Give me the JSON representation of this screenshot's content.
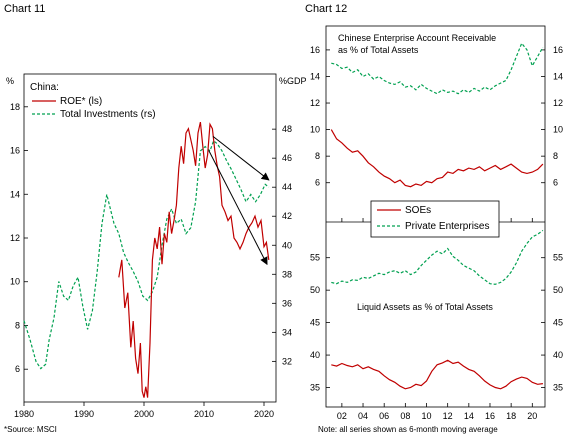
{
  "chart_data": [
    {
      "title": "Chart 11",
      "type": "line",
      "legend_title": "China:",
      "legend_position": "top-left",
      "left_axis_unit": "%",
      "right_axis_unit": "%GDP",
      "source": "*Source: MSCI",
      "xlim": [
        1980,
        2022
      ],
      "x_ticks": [
        "1980",
        "1990",
        "2000",
        "2010",
        "2020"
      ],
      "ylim_left": [
        4.5,
        19.5
      ],
      "y_ticks_left": [
        "6",
        "8",
        "10",
        "12",
        "14",
        "16",
        "18"
      ],
      "ylim_right": [
        29.2,
        51.8
      ],
      "y_ticks_right": [
        "32",
        "34",
        "36",
        "38",
        "40",
        "42",
        "44",
        "46",
        "48"
      ],
      "grid": false,
      "series": [
        {
          "name": "ROE* (ls)",
          "axis": "left",
          "color": "#c00000",
          "style": "solid",
          "x": [
            1995.8,
            1996.3,
            1996.8,
            1997.3,
            1997.8,
            1998.2,
            1998.6,
            1999.0,
            1999.4,
            1999.7,
            2000.0,
            2000.3,
            2000.6,
            2001.0,
            2001.4,
            2001.8,
            2002.2,
            2002.6,
            2003.0,
            2003.4,
            2003.8,
            2004.2,
            2004.6,
            2005.0,
            2005.4,
            2005.8,
            2006.2,
            2006.6,
            2007.0,
            2007.4,
            2007.8,
            2008.2,
            2008.6,
            2009.0,
            2009.4,
            2009.8,
            2010.2,
            2010.6,
            2011.0,
            2011.4,
            2011.8,
            2012.2,
            2012.6,
            2013.0,
            2013.5,
            2014.0,
            2014.5,
            2015.0,
            2015.5,
            2016.0,
            2016.5,
            2017.0,
            2017.5,
            2018.0,
            2018.5,
            2019.0,
            2019.5,
            2020.0,
            2020.4,
            2020.8
          ],
          "values": [
            10.2,
            11.0,
            8.8,
            9.5,
            7.0,
            8.2,
            6.5,
            5.8,
            7.2,
            5.0,
            4.7,
            5.2,
            4.7,
            7.2,
            11.0,
            12.0,
            11.5,
            12.5,
            10.8,
            12.2,
            11.8,
            13.2,
            12.2,
            12.8,
            13.5,
            15.2,
            16.2,
            15.4,
            16.8,
            17.0,
            16.5,
            16.0,
            15.3,
            16.8,
            17.3,
            16.2,
            15.2,
            15.8,
            17.2,
            17.0,
            16.0,
            15.3,
            14.8,
            13.5,
            13.2,
            12.8,
            13.0,
            12.0,
            11.8,
            11.5,
            11.8,
            12.2,
            12.5,
            12.7,
            13.0,
            12.5,
            12.8,
            11.6,
            11.8,
            11.0
          ]
        },
        {
          "name": "Total Investments (rs)",
          "axis": "right",
          "color": "#00a050",
          "style": "dashed",
          "x": [
            1980,
            1981,
            1982,
            1982.8,
            1983.6,
            1984.2,
            1985,
            1985.8,
            1986.6,
            1987.4,
            1988.2,
            1989,
            1989.8,
            1990.6,
            1991.4,
            1992.2,
            1993,
            1993.8,
            1994.4,
            1995,
            1995.8,
            1996.6,
            1997.4,
            1998.2,
            1999,
            1999.8,
            2000.6,
            2001.4,
            2002.2,
            2003,
            2003.8,
            2004.6,
            2005.4,
            2006.2,
            2007,
            2007.8,
            2008.6,
            2009.4,
            2010.2,
            2011,
            2011.6,
            2012.2,
            2013,
            2013.8,
            2014.6,
            2015.4,
            2016.2,
            2017,
            2017.8,
            2018.6,
            2019.4,
            2020.2,
            2020.8
          ],
          "values": [
            34.8,
            33.5,
            32.0,
            31.5,
            31.8,
            33.5,
            35.0,
            37.5,
            36.5,
            36.2,
            37.2,
            37.8,
            35.8,
            34.2,
            35.5,
            38.2,
            41.5,
            43.5,
            42.5,
            41.5,
            40.8,
            39.5,
            38.8,
            38.2,
            37.5,
            36.5,
            36.2,
            36.8,
            37.8,
            40.0,
            41.8,
            42.5,
            41.5,
            41.8,
            40.8,
            41.2,
            43.0,
            46.5,
            46.8,
            46.5,
            47.2,
            47.0,
            46.5,
            45.8,
            45.2,
            44.5,
            43.8,
            43.0,
            43.5,
            43.0,
            43.5,
            44.2,
            44.0
          ]
        }
      ],
      "annotations": [
        {
          "type": "arrow",
          "from": [
            2011.5,
            47.5
          ],
          "to": [
            2020.8,
            44.5
          ]
        },
        {
          "type": "arrow",
          "from": [
            2010.8,
            16.0
          ],
          "to": [
            2020.5,
            10.8
          ]
        }
      ]
    },
    {
      "title": "Chart 12",
      "type": "line",
      "legend_position": "center",
      "note": "Note: all series shown as 6-month moving average",
      "xlim": [
        2000.5,
        2021.2
      ],
      "x_ticks": [
        "02",
        "04",
        "06",
        "08",
        "10",
        "12",
        "14",
        "16",
        "18",
        "20"
      ],
      "legend": [
        {
          "name": "SOEs",
          "color": "#c00000",
          "style": "solid"
        },
        {
          "name": "Private Enterprises",
          "color": "#00a050",
          "style": "dashed"
        }
      ],
      "panels": [
        {
          "title": "Chinese Enterprise Account Receivable as % of Total Assets",
          "ylim": [
            5.0,
            17.8
          ],
          "y_ticks": [
            "6",
            "8",
            "10",
            "12",
            "14",
            "16"
          ],
          "series": [
            {
              "name": "SOEs",
              "color": "#c00000",
              "style": "solid",
              "x": [
                2001,
                2001.5,
                2002,
                2002.5,
                2003,
                2003.5,
                2004,
                2004.5,
                2005,
                2005.5,
                2006,
                2006.5,
                2007,
                2007.5,
                2008,
                2008.5,
                2009,
                2009.5,
                2010,
                2010.5,
                2011,
                2011.5,
                2012,
                2012.5,
                2013,
                2013.5,
                2014,
                2014.5,
                2015,
                2015.5,
                2016,
                2016.5,
                2017,
                2017.5,
                2018,
                2018.5,
                2019,
                2019.5,
                2020,
                2020.5,
                2021
              ],
              "values": [
                10.0,
                9.3,
                9.0,
                8.6,
                8.3,
                8.4,
                8.0,
                7.5,
                7.2,
                6.8,
                6.5,
                6.3,
                6.0,
                6.2,
                5.8,
                5.7,
                5.9,
                5.8,
                6.1,
                6.0,
                6.3,
                6.4,
                6.8,
                6.7,
                7.0,
                6.9,
                7.1,
                7.0,
                7.2,
                6.9,
                7.1,
                7.3,
                7.0,
                7.2,
                7.4,
                7.1,
                6.8,
                6.7,
                6.8,
                7.0,
                7.4
              ]
            },
            {
              "name": "Private Enterprises",
              "color": "#00a050",
              "style": "dashed",
              "x": [
                2001,
                2001.5,
                2002,
                2002.5,
                2003,
                2003.5,
                2004,
                2004.5,
                2005,
                2005.5,
                2006,
                2006.5,
                2007,
                2007.5,
                2008,
                2008.5,
                2009,
                2009.5,
                2010,
                2010.5,
                2011,
                2011.5,
                2012,
                2012.5,
                2013,
                2013.5,
                2014,
                2014.5,
                2015,
                2015.5,
                2016,
                2016.5,
                2017,
                2017.5,
                2018,
                2018.5,
                2019,
                2019.5,
                2020,
                2020.5,
                2021
              ],
              "values": [
                15.0,
                14.9,
                14.6,
                14.7,
                14.3,
                14.5,
                14.0,
                14.2,
                13.8,
                14.0,
                13.7,
                13.5,
                13.4,
                13.6,
                13.2,
                13.3,
                13.0,
                13.4,
                13.1,
                12.9,
                12.7,
                13.0,
                12.8,
                12.9,
                12.7,
                13.0,
                12.8,
                13.1,
                12.9,
                13.2,
                13.0,
                13.3,
                13.5,
                13.7,
                14.5,
                15.5,
                16.5,
                16.0,
                14.8,
                15.5,
                16.2
              ]
            }
          ]
        },
        {
          "title": "Liquid Assets as % of Total Assets",
          "ylim": [
            32.0,
            60.5
          ],
          "y_ticks": [
            "35",
            "40",
            "45",
            "50",
            "55"
          ],
          "series": [
            {
              "name": "SOEs",
              "color": "#c00000",
              "style": "solid",
              "x": [
                2001,
                2001.5,
                2002,
                2002.5,
                2003,
                2003.5,
                2004,
                2004.5,
                2005,
                2005.5,
                2006,
                2006.5,
                2007,
                2007.5,
                2008,
                2008.5,
                2009,
                2009.5,
                2010,
                2010.5,
                2011,
                2011.5,
                2012,
                2012.5,
                2013,
                2013.5,
                2014,
                2014.5,
                2015,
                2015.5,
                2016,
                2016.5,
                2017,
                2017.5,
                2018,
                2018.5,
                2019,
                2019.5,
                2020,
                2020.5,
                2021
              ],
              "values": [
                38.5,
                38.3,
                38.7,
                38.4,
                38.2,
                38.5,
                37.9,
                38.2,
                37.8,
                37.5,
                36.8,
                36.2,
                35.8,
                35.2,
                34.8,
                35.0,
                35.5,
                35.3,
                36.0,
                37.5,
                38.5,
                38.8,
                39.2,
                38.7,
                38.9,
                38.3,
                37.8,
                37.5,
                36.8,
                36.0,
                35.4,
                35.0,
                34.8,
                35.2,
                35.9,
                36.3,
                36.6,
                36.4,
                35.8,
                35.5,
                35.6
              ]
            },
            {
              "name": "Private Enterprises",
              "color": "#00a050",
              "style": "dashed",
              "x": [
                2001,
                2001.5,
                2002,
                2002.5,
                2003,
                2003.5,
                2004,
                2004.5,
                2005,
                2005.5,
                2006,
                2006.5,
                2007,
                2007.5,
                2008,
                2008.5,
                2009,
                2009.5,
                2010,
                2010.5,
                2011,
                2011.5,
                2012,
                2012.5,
                2013,
                2013.5,
                2014,
                2014.5,
                2015,
                2015.5,
                2016,
                2016.5,
                2017,
                2017.5,
                2018,
                2018.5,
                2019,
                2019.5,
                2020,
                2020.5,
                2021
              ],
              "values": [
                51.2,
                51.0,
                51.4,
                51.2,
                51.6,
                51.5,
                52.0,
                51.8,
                52.2,
                52.6,
                52.4,
                52.8,
                53.0,
                52.6,
                53.0,
                52.4,
                52.8,
                53.8,
                54.6,
                55.4,
                56.0,
                55.6,
                56.4,
                55.2,
                54.6,
                53.8,
                53.4,
                53.0,
                52.2,
                51.6,
                51.0,
                50.9,
                51.2,
                51.8,
                52.8,
                54.2,
                56.0,
                57.2,
                58.2,
                58.6,
                59.2
              ]
            }
          ]
        }
      ]
    }
  ]
}
